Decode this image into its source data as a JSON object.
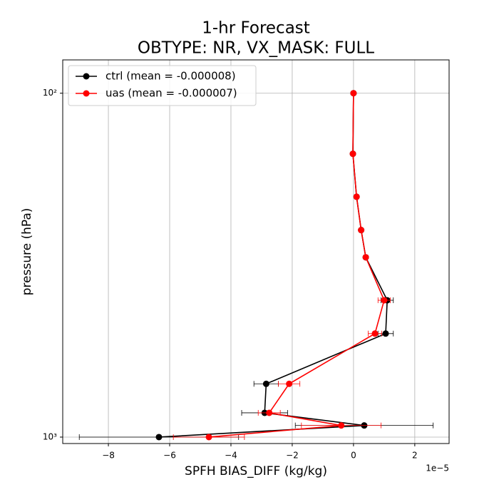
{
  "chart_data": {
    "type": "profile",
    "title": "1-hr Forecast",
    "subtitle": "OBTYPE: NR,  VX_MASK: FULL",
    "xlabel": "SPFH BIAS_DIFF (kg/kg)",
    "ylabel": "pressure (hPa)",
    "x_offset_label": "1e−5",
    "y": [
      100,
      150,
      200,
      250,
      300,
      400,
      500,
      700,
      850,
      925,
      1000
    ],
    "series": [
      {
        "name": "ctrl (mean = -0.000008)",
        "color": "#000000",
        "values": [
          0,
          -0.02,
          0.1,
          0.25,
          0.4,
          1.1,
          1.05,
          -2.85,
          -2.9,
          0.35,
          -6.35
        ],
        "errors": [
          0,
          0,
          0,
          0,
          0,
          0.2,
          0.25,
          0.4,
          0.75,
          2.25,
          2.6
        ]
      },
      {
        "name": "uas (mean = -0.000007)",
        "color": "#ff0000",
        "values": [
          0,
          -0.02,
          0.1,
          0.25,
          0.4,
          1.0,
          0.7,
          -2.1,
          -2.75,
          -0.4,
          -4.72
        ],
        "errors": [
          0,
          0,
          0,
          0,
          0,
          0.2,
          0.22,
          0.35,
          0.36,
          1.3,
          1.16
        ]
      }
    ],
    "xlim": [
      -9.49,
      3.12
    ],
    "xticks": [
      {
        "value": -8,
        "label": "−8"
      },
      {
        "value": -6,
        "label": "−6"
      },
      {
        "value": -4,
        "label": "−4"
      },
      {
        "value": -2,
        "label": "−2"
      },
      0,
      2
    ],
    "ylim": [
      80,
      1044
    ],
    "yticks": [
      {
        "value": 100,
        "label": "10²"
      },
      {
        "value": 1000,
        "label": "10³"
      }
    ],
    "ylog": true,
    "yinverted": true,
    "grid": true,
    "legend": "upper left"
  }
}
